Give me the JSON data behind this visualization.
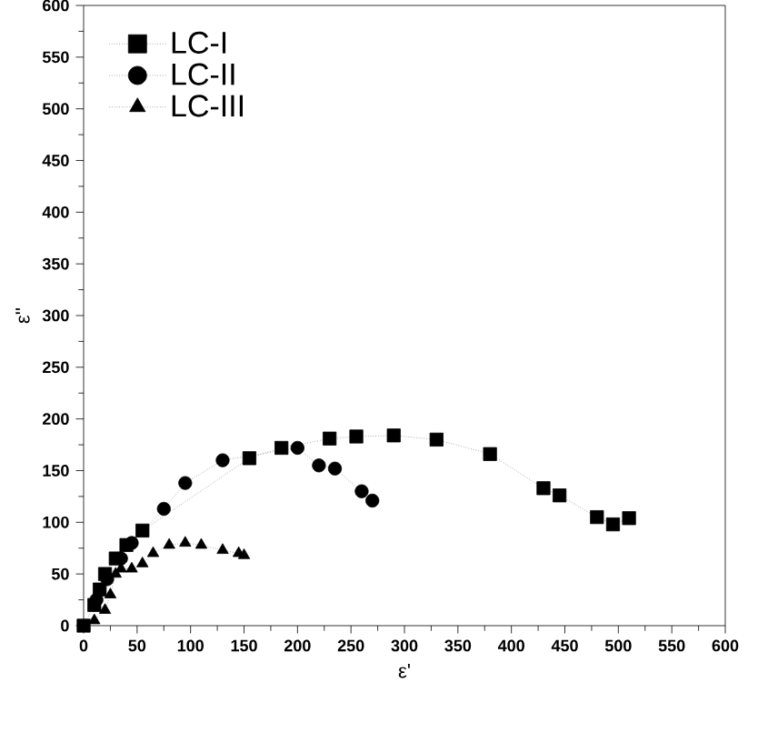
{
  "chart_data": {
    "type": "line",
    "xlabel": "ε'",
    "ylabel": "ε''",
    "xlim": [
      0,
      600
    ],
    "ylim": [
      0,
      600
    ],
    "xticks": [
      0,
      50,
      100,
      150,
      200,
      250,
      300,
      350,
      400,
      450,
      500,
      550,
      600
    ],
    "yticks": [
      0,
      50,
      100,
      150,
      200,
      250,
      300,
      350,
      400,
      450,
      500,
      550,
      600
    ],
    "legend": "top left",
    "grid": false,
    "line_style": "dotted",
    "series": [
      {
        "name": "LC-I",
        "color": "#000000",
        "marker": "square",
        "x": [
          0,
          5,
          10,
          15,
          20,
          30,
          40,
          55,
          155,
          185,
          200,
          230,
          255,
          290,
          330,
          380,
          430,
          445,
          480,
          495,
          510
        ],
        "values": [
          0,
          null,
          20,
          35,
          50,
          65,
          78,
          92,
          162,
          172,
          null,
          181,
          183,
          184,
          180,
          166,
          133,
          126,
          105,
          98,
          104
        ]
      },
      {
        "name": "LC-II",
        "color": "#000000",
        "marker": "circle",
        "x": [
          12,
          22,
          35,
          45,
          75,
          95,
          130,
          200,
          220,
          235,
          260,
          270
        ],
        "values": [
          25,
          45,
          65,
          80,
          113,
          138,
          160,
          172,
          155,
          152,
          130,
          121
        ]
      },
      {
        "name": "LC-III",
        "color": "#000000",
        "marker": "triangle",
        "x": [
          1,
          10,
          20,
          25,
          30,
          35,
          45,
          55,
          65,
          80,
          95,
          110,
          130,
          145,
          150
        ],
        "values": [
          0,
          5,
          15,
          30,
          50,
          55,
          55,
          60,
          70,
          78,
          80,
          78,
          73,
          70,
          68
        ]
      }
    ]
  }
}
